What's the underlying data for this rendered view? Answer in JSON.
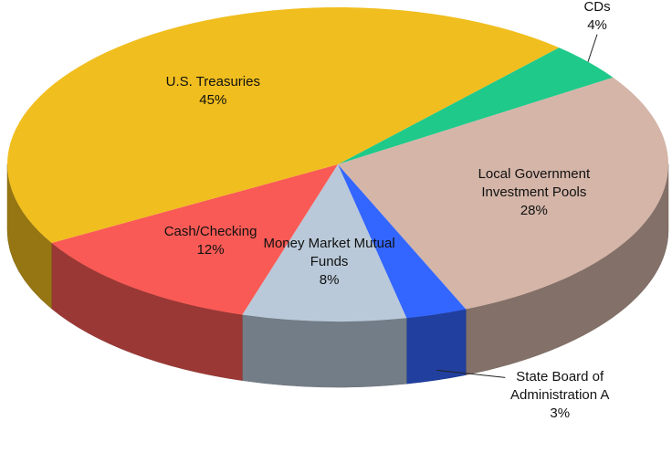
{
  "chart_data": {
    "type": "pie3d",
    "categories": [
      "CDs",
      "Local Government Investment Pools",
      "State Board of Administration A",
      "Money Market Mutual Funds",
      "Cash/Checking",
      "U.S. Treasuries"
    ],
    "values": [
      4,
      28,
      3,
      8,
      12,
      45
    ],
    "value_labels": [
      "4%",
      "28%",
      "3%",
      "8%",
      "12%",
      "45%"
    ],
    "colors": [
      "#1fc98a",
      "#d4b5a8",
      "#3366ff",
      "#b9c9d9",
      "#f95a55",
      "#f0be1f"
    ]
  }
}
